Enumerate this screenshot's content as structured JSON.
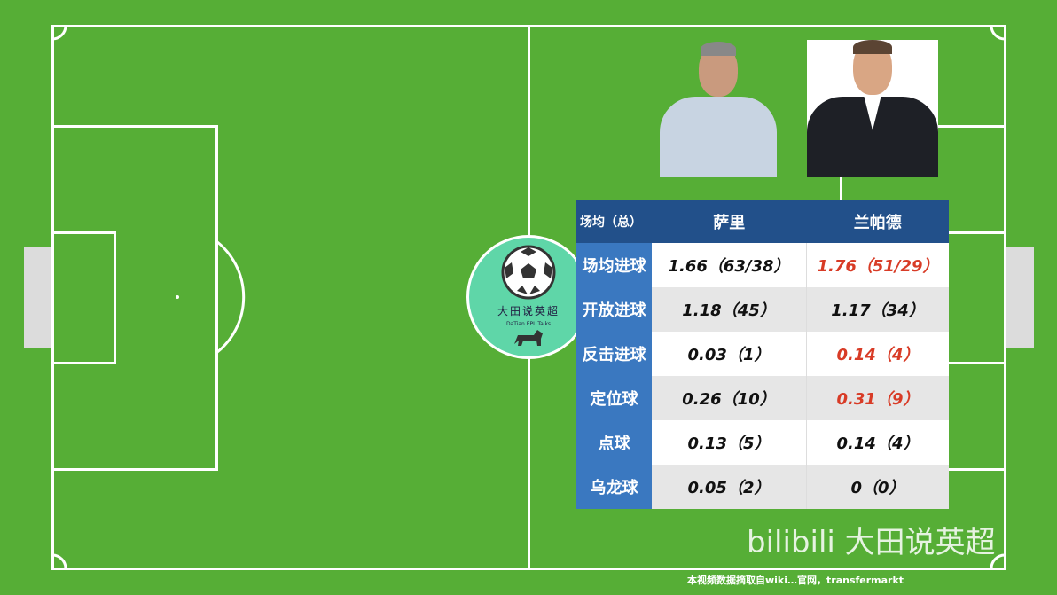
{
  "colors": {
    "pitch": "#56ae36",
    "header": "#22508a",
    "label_col": "#3a78c0",
    "highlight": "#d83b26"
  },
  "logo": {
    "title": "大田说英超",
    "subtitle": "DaTian EPL Talks"
  },
  "table": {
    "corner": "场均（总）",
    "managers": [
      "萨里",
      "兰帕德"
    ],
    "rows": [
      {
        "label": "场均进球",
        "sarri": "1.66（63/38）",
        "lampard": "1.76（51/29）",
        "lampard_highlight": true
      },
      {
        "label": "开放进球",
        "sarri": "1.18（45）",
        "lampard": "1.17（34）",
        "lampard_highlight": false
      },
      {
        "label": "反击进球",
        "sarri": "0.03（1）",
        "lampard": "0.14（4）",
        "lampard_highlight": true
      },
      {
        "label": "定位球",
        "sarri": "0.26（10）",
        "lampard": "0.31（9）",
        "lampard_highlight": true
      },
      {
        "label": "点球",
        "sarri": "0.13（5）",
        "lampard": "0.14（4）",
        "lampard_highlight": false
      },
      {
        "label": "乌龙球",
        "sarri": "0.05（2）",
        "lampard": "0（0）",
        "lampard_highlight": false
      }
    ]
  },
  "source_note": "本视频数据摘取自wiki…官网，transfermarkt",
  "watermark": "bilibili 大田说英超"
}
